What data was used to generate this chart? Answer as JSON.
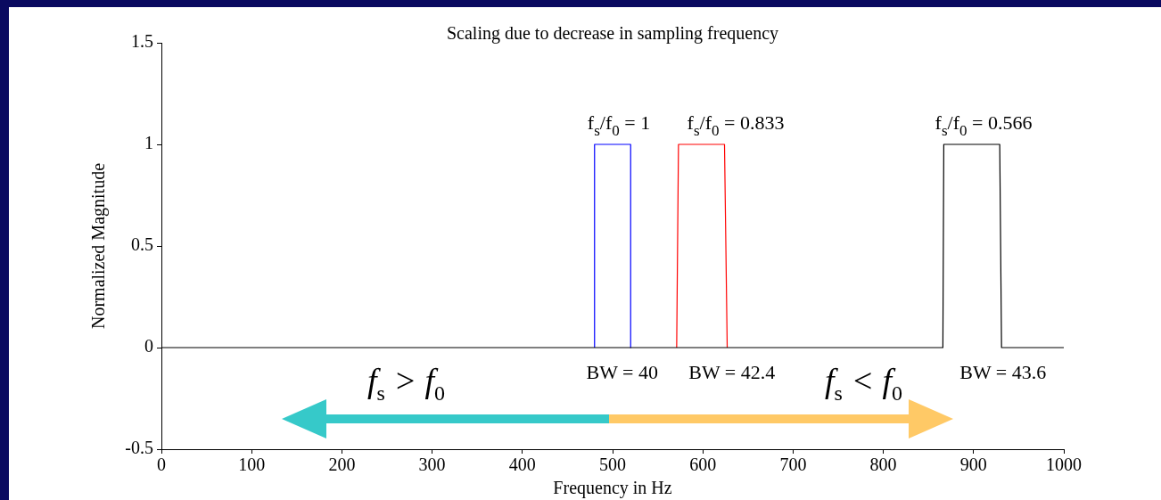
{
  "chart_data": {
    "type": "line",
    "title": "Scaling due to decrease in sampling frequency",
    "xlabel": "Frequency in Hz",
    "ylabel": "Normalized Magnitude",
    "xlim": [
      0,
      1000
    ],
    "xticks": [
      0,
      100,
      200,
      300,
      400,
      500,
      600,
      700,
      800,
      900,
      1000
    ],
    "ylim": [
      -0.5,
      1.5
    ],
    "yticks": [
      -0.5,
      0,
      0.5,
      1,
      1.5
    ],
    "grid": false,
    "legend": false,
    "marker": "none",
    "line_style": "solid",
    "series": [
      {
        "color": "#000000",
        "x": [
          0,
          866,
          867,
          929,
          931,
          1000
        ],
        "values": [
          0,
          0,
          1,
          1,
          0,
          0
        ]
      },
      {
        "color": "#ff0000",
        "x": [
          571,
          573,
          624,
          627
        ],
        "values": [
          0,
          1,
          1,
          0
        ]
      },
      {
        "color": "#0000ff",
        "x": [
          480,
          480,
          520,
          520
        ],
        "values": [
          0,
          1,
          1,
          0
        ]
      }
    ],
    "annotations": [
      "f$_{s}$/f$_{0}$ = 1",
      "f$_{s}$/f$_{0}$ = 0.833",
      "f$_{s}$/f$_{0}$ = 0.566",
      "BW = 40",
      "BW = 42.4",
      "BW = 43.6",
      "f$_{s}$ > f$_{0}$",
      "f$_{s}$ < f$_{0}$"
    ]
  }
}
